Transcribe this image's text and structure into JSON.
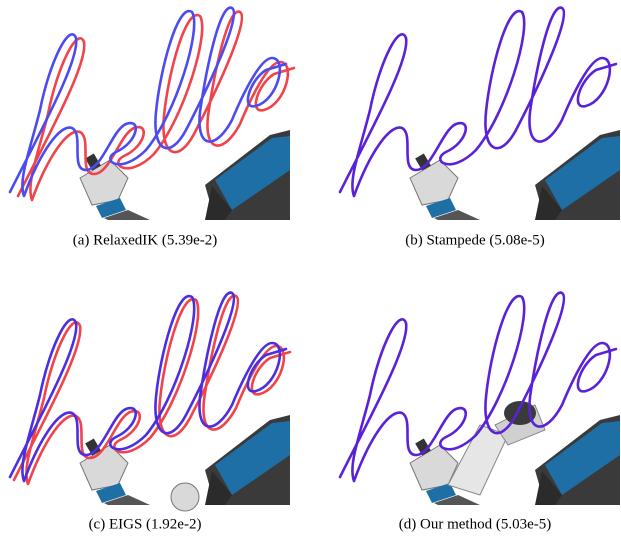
{
  "figure": {
    "subfigures": [
      {
        "caption": "(a) RelaxedIK (5.39e-2)"
      },
      {
        "caption": "(b) Stampede (5.08e-5)"
      },
      {
        "caption": "(c) EIGS (1.92e-2)"
      },
      {
        "caption": "(d) Our method (5.03e-5)"
      }
    ]
  }
}
